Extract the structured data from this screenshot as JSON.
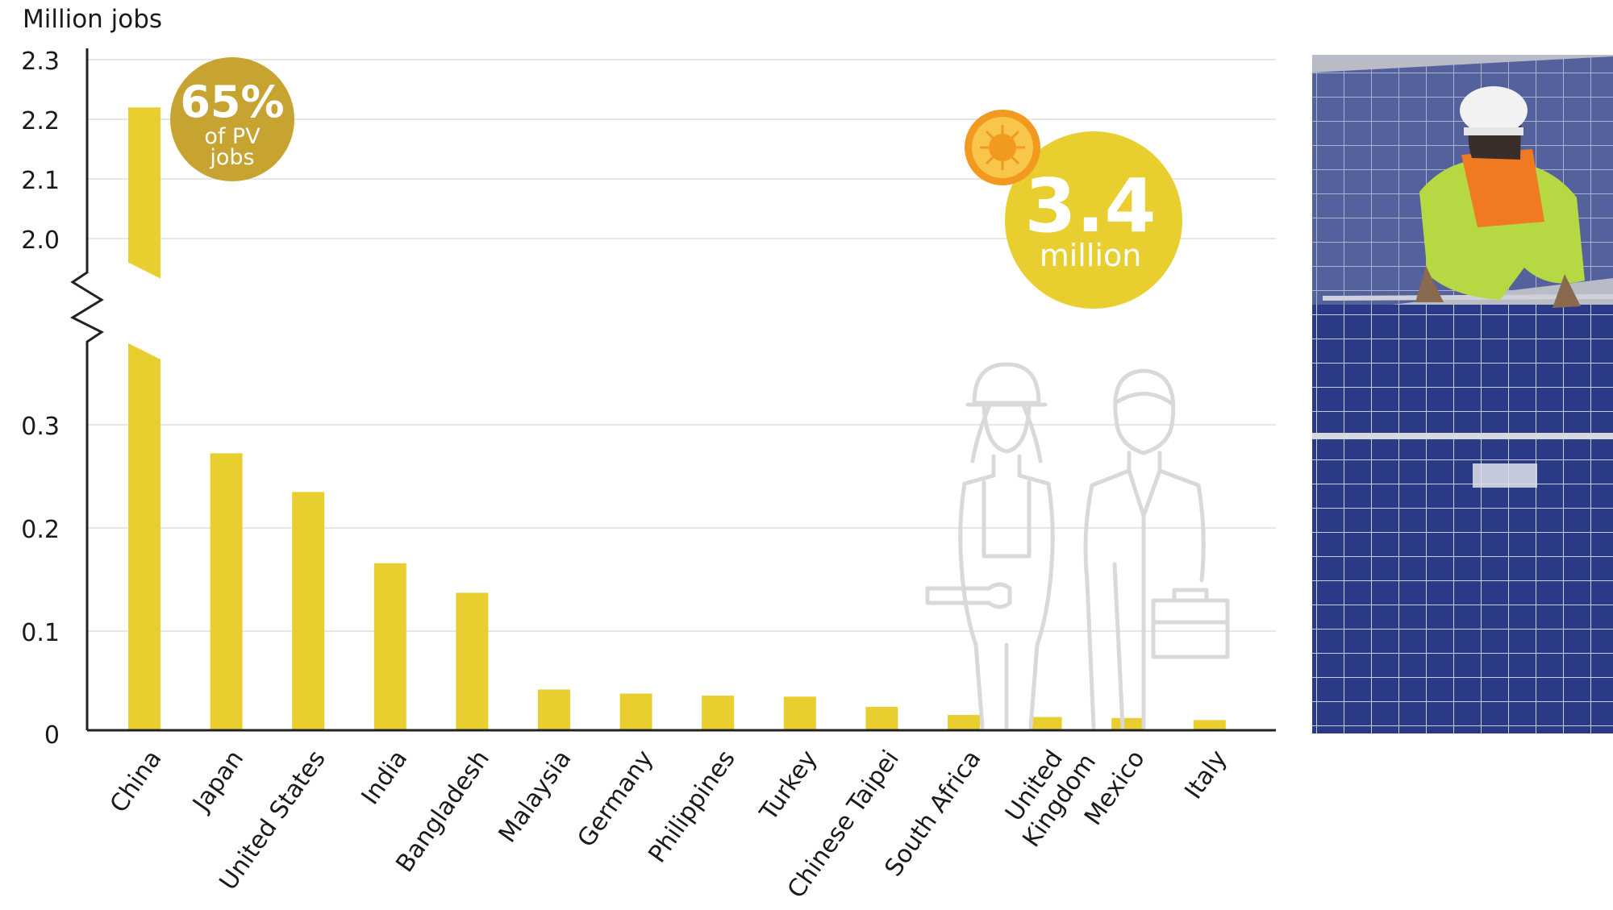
{
  "chart_data": {
    "type": "bar",
    "ylabel": "Million jobs",
    "categories": [
      "China",
      "Japan",
      "United States",
      "India",
      "Bangladesh",
      "Malaysia",
      "Germany",
      "Philippines",
      "Turkey",
      "Chinese Taipei",
      "South Africa",
      "United Kingdom",
      "Mexico",
      "Italy"
    ],
    "values": [
      2.22,
      0.272,
      0.234,
      0.164,
      0.135,
      0.04,
      0.036,
      0.034,
      0.033,
      0.023,
      0.015,
      0.013,
      0.012,
      0.01
    ],
    "y_axis": {
      "broken": true,
      "lower_range": [
        0,
        0.3
      ],
      "upper_range": [
        2.0,
        2.3
      ],
      "lower_ticks": [
        "0",
        "0.1",
        "0.2",
        "0.3"
      ],
      "upper_ticks": [
        "2.0",
        "2.1",
        "2.2",
        "2.3"
      ]
    },
    "grid": true,
    "bar_color": "#e8cf2f",
    "annotations": {
      "share_value": "65%",
      "share_line1": "of PV",
      "share_line2": "jobs",
      "total_value": "3.4",
      "total_unit": "million"
    }
  },
  "colors": {
    "bar": "#e8cf2f",
    "share_badge": "#c7a332",
    "total_badge": "#e8cf2f",
    "sun_icon": "#f29a1f",
    "axis": "#222222",
    "grid": "#e6e6e6",
    "figure_outline": "#d9d9d9"
  },
  "icons": {
    "sun": "sun-icon",
    "female_worker": "female-worker-icon",
    "male_worker": "male-worker-icon"
  },
  "photo": "solar-panel-installer-photo"
}
